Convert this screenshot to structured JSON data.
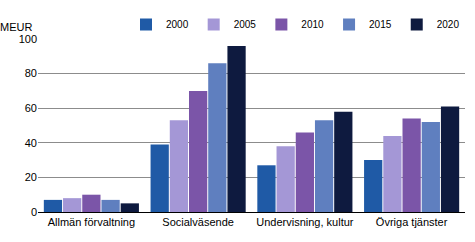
{
  "chart_data": {
    "type": "bar",
    "ylabel": "MEUR",
    "categories": [
      "Allmän förvaltning",
      "Socialväsende",
      "Undervisning, kultur",
      "Övriga tjänster"
    ],
    "series": [
      {
        "name": "2000",
        "color": "#1f5aa6",
        "values": [
          7,
          39,
          27,
          30
        ]
      },
      {
        "name": "2005",
        "color": "#a497d6",
        "values": [
          8,
          53,
          38,
          44
        ]
      },
      {
        "name": "2010",
        "color": "#7b55a8",
        "values": [
          10,
          70,
          46,
          54
        ]
      },
      {
        "name": "2015",
        "color": "#5f7fbf",
        "values": [
          7,
          86,
          53,
          52
        ]
      },
      {
        "name": "2020",
        "color": "#0e1a3f",
        "values": [
          5,
          96,
          58,
          61
        ]
      }
    ],
    "ylim": [
      0,
      100
    ],
    "yticks": [
      0,
      20,
      40,
      60,
      80,
      100
    ],
    "grid": true,
    "legend": "top right"
  }
}
